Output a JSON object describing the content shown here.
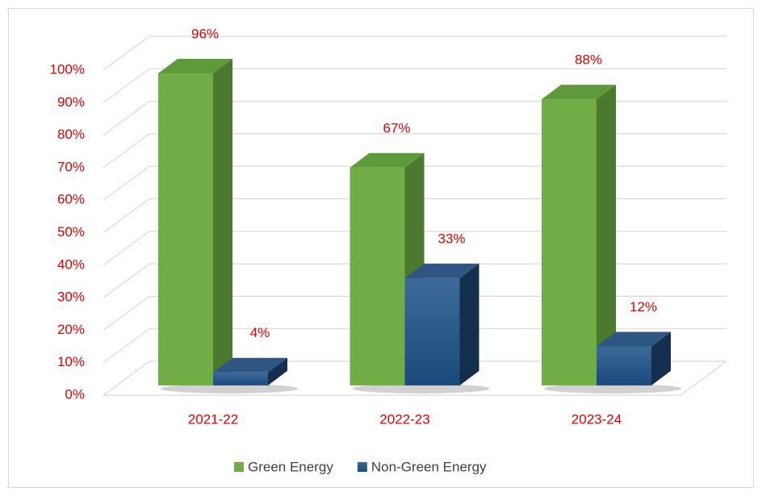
{
  "chart_data": {
    "type": "bar3d",
    "categories": [
      "2021-22",
      "2022-23",
      "2023-24"
    ],
    "series": [
      {
        "name": "Green Energy",
        "color": "#70ad47",
        "values": [
          96,
          67,
          88
        ],
        "value_labels": [
          "96%",
          "67%",
          "88%"
        ]
      },
      {
        "name": "Non-Green Energy",
        "color": "#1f4e79",
        "values": [
          4,
          33,
          12
        ],
        "value_labels": [
          "4%",
          "33%",
          "12%"
        ]
      }
    ],
    "ylim": [
      0,
      100
    ],
    "yticks": [
      {
        "value": 0,
        "label": "0%"
      },
      {
        "value": 10,
        "label": "10%"
      },
      {
        "value": 20,
        "label": "20%"
      },
      {
        "value": 30,
        "label": "30%"
      },
      {
        "value": 40,
        "label": "40%"
      },
      {
        "value": 50,
        "label": "50%"
      },
      {
        "value": 60,
        "label": "60%"
      },
      {
        "value": 70,
        "label": "70%"
      },
      {
        "value": 80,
        "label": "80%"
      },
      {
        "value": 90,
        "label": "90%"
      },
      {
        "value": 100,
        "label": "100%"
      }
    ],
    "grid": true,
    "legend": "bottom"
  }
}
